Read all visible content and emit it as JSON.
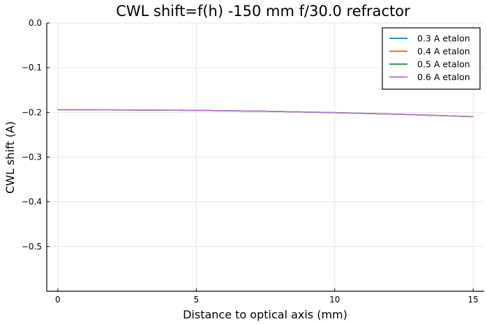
{
  "chart_data": {
    "type": "line",
    "title": "CWL shift=f(h) -150 mm f/30.0 refractor",
    "xlabel": "Distance to optical axis (mm)",
    "ylabel": "CWL shift (A)",
    "xlim": [
      -0.4,
      15.4
    ],
    "ylim": [
      -0.6,
      0.0
    ],
    "xticks": [
      0,
      5,
      10,
      15
    ],
    "xtick_labels": [
      "0",
      "5",
      "10",
      "15"
    ],
    "yticks": [
      0.0,
      -0.1,
      -0.2,
      -0.3,
      -0.4,
      -0.5
    ],
    "ytick_labels": [
      "0.0",
      "−0.1",
      "−0.2",
      "−0.3",
      "−0.4",
      "−0.5"
    ],
    "grid": true,
    "legend_position": "top-right",
    "x": [
      0,
      2.5,
      5,
      7.5,
      10,
      12.5,
      15
    ],
    "series": [
      {
        "name": "0.3 A etalon",
        "color": "#1f8fde",
        "values": [
          -0.194,
          -0.1945,
          -0.1955,
          -0.1975,
          -0.2005,
          -0.2045,
          -0.2095
        ]
      },
      {
        "name": "0.4 A etalon",
        "color": "#e26a3c",
        "values": [
          -0.194,
          -0.1945,
          -0.1955,
          -0.1975,
          -0.2005,
          -0.2045,
          -0.2095
        ]
      },
      {
        "name": "0.5 A etalon",
        "color": "#3a9b47",
        "values": [
          -0.194,
          -0.1945,
          -0.1955,
          -0.1975,
          -0.2005,
          -0.2045,
          -0.2095
        ]
      },
      {
        "name": "0.6 A etalon",
        "color": "#b678c9",
        "values": [
          -0.194,
          -0.1945,
          -0.1955,
          -0.1975,
          -0.2005,
          -0.2045,
          -0.2095
        ]
      }
    ]
  }
}
